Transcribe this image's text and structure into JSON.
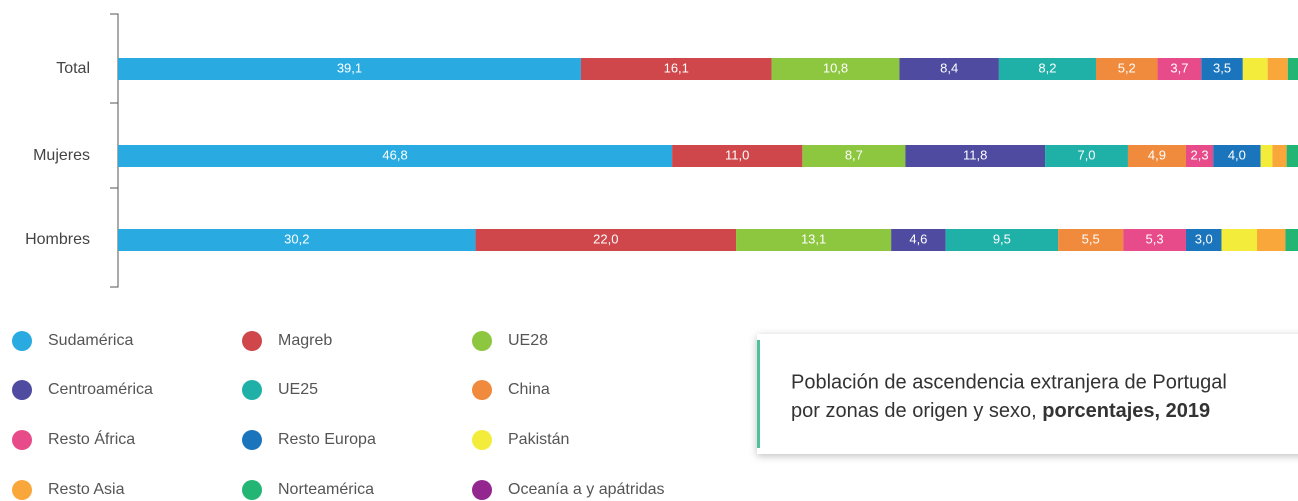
{
  "chart_data": {
    "type": "stacked-bar-horizontal",
    "title": {
      "line1": "Población de ascendencia extranjera de Portugal",
      "line2": "por zonas de origen y sexo,",
      "bold": "porcentajes, 2019"
    },
    "categories": [
      "Total",
      "Mujeres",
      "Hombres"
    ],
    "xlim": [
      0,
      100
    ],
    "series": [
      {
        "name": "Sudamérica",
        "color": "#29abe2",
        "values": [
          39.1,
          46.8,
          30.2
        ],
        "value_labels": [
          "39,1",
          "46,8",
          "30,2"
        ]
      },
      {
        "name": "Magreb",
        "color": "#cf474a",
        "values": [
          16.1,
          11.0,
          22.0
        ],
        "value_labels": [
          "16,1",
          "11,0",
          "22,0"
        ]
      },
      {
        "name": "UE28",
        "color": "#8dc63f",
        "values": [
          10.8,
          8.7,
          13.1
        ],
        "value_labels": [
          "10,8",
          "8,7",
          "13,1"
        ]
      },
      {
        "name": "Centroamérica",
        "color": "#4e4ba0",
        "values": [
          8.4,
          11.8,
          4.6
        ],
        "value_labels": [
          "8,4",
          "11,8",
          "4,6"
        ]
      },
      {
        "name": "UE25",
        "color": "#1fb0a8",
        "values": [
          8.2,
          7.0,
          9.5
        ],
        "value_labels": [
          "8,2",
          "7,0",
          "9,5"
        ]
      },
      {
        "name": "China",
        "color": "#f08a3c",
        "values": [
          5.2,
          4.9,
          5.5
        ],
        "value_labels": [
          "5,2",
          "4,9",
          "5,5"
        ]
      },
      {
        "name": "Resto África",
        "color": "#e84b8a",
        "values": [
          3.7,
          2.3,
          5.3
        ],
        "value_labels": [
          "3,7",
          "2,3",
          "5,3"
        ]
      },
      {
        "name": "Resto Europa",
        "color": "#1b75bc",
        "values": [
          3.5,
          4.0,
          3.0
        ],
        "value_labels": [
          "3,5",
          "4,0",
          "3,0"
        ]
      },
      {
        "name": "Pakistán",
        "color": "#f4ec3a",
        "values": [
          2.1,
          1.0,
          3.0
        ],
        "value_labels": [
          null,
          null,
          null
        ]
      },
      {
        "name": "Resto Asia",
        "color": "#f9a73b",
        "values": [
          1.7,
          1.2,
          2.4
        ],
        "value_labels": [
          null,
          null,
          null
        ]
      },
      {
        "name": "Norteamérica",
        "color": "#22b573",
        "values": [
          1.0,
          1.1,
          1.2
        ],
        "value_labels": [
          null,
          null,
          null
        ]
      },
      {
        "name": "Oceanía a y apátridas",
        "color": "#93278f",
        "values": [
          0.2,
          0.2,
          0.2
        ],
        "value_labels": [
          null,
          null,
          null
        ]
      }
    ]
  }
}
